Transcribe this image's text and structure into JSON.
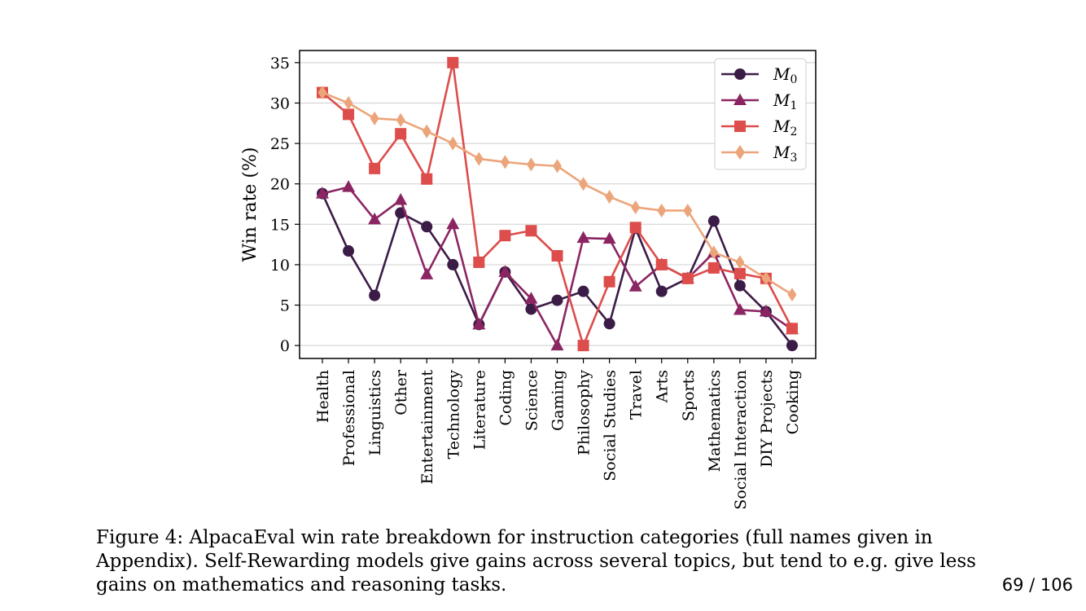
{
  "chart_data": {
    "type": "line",
    "ylabel": "Win rate (%)",
    "xlabel": "",
    "ylim": [
      -1.6,
      36.5
    ],
    "yticks": [
      0,
      5,
      10,
      15,
      20,
      25,
      30,
      35
    ],
    "grid": "horizontal",
    "legend_position": "top-right",
    "categories": [
      "Health",
      "Professional",
      "Linguistics",
      "Other",
      "Entertainment",
      "Technology",
      "Literature",
      "Coding",
      "Science",
      "Gaming",
      "Philosophy",
      "Social Studies",
      "Travel",
      "Arts",
      "Sports",
      "Mathematics",
      "Social Interaction",
      "DIY Projects",
      "Cooking"
    ],
    "series": [
      {
        "name": "M",
        "sub": "0",
        "marker": "circle",
        "color": "#3b1c47",
        "values": [
          18.8,
          11.7,
          6.2,
          16.4,
          14.7,
          10.0,
          2.6,
          9.1,
          4.5,
          5.6,
          6.7,
          2.7,
          14.5,
          6.7,
          8.3,
          15.4,
          7.4,
          4.2,
          0.0
        ]
      },
      {
        "name": "M",
        "sub": "1",
        "marker": "triangle",
        "color": "#8b2562",
        "values": [
          18.8,
          19.6,
          15.6,
          18.0,
          8.8,
          15.0,
          2.6,
          9.1,
          5.8,
          0.0,
          13.3,
          13.2,
          7.3,
          10.0,
          8.3,
          11.5,
          4.4,
          4.2,
          2.0
        ]
      },
      {
        "name": "M",
        "sub": "2",
        "marker": "square",
        "color": "#dc4d4b",
        "values": [
          31.3,
          28.6,
          21.9,
          26.2,
          20.6,
          35.0,
          10.3,
          13.6,
          14.2,
          11.1,
          0.0,
          7.9,
          14.6,
          10.0,
          8.3,
          9.6,
          8.9,
          8.3,
          2.1
        ]
      },
      {
        "name": "M",
        "sub": "3",
        "marker": "diamond",
        "color": "#eca57b",
        "values": [
          31.3,
          30.0,
          28.1,
          27.9,
          26.5,
          25.0,
          23.1,
          22.7,
          22.4,
          22.2,
          20.0,
          18.4,
          17.1,
          16.7,
          16.7,
          11.5,
          10.3,
          8.3,
          6.3
        ]
      }
    ]
  },
  "caption": {
    "lines": [
      "Figure 4:  AlpacaEval win rate breakdown for instruction categories (full names given in",
      "Appendix). Self-Rewarding models give gains across several topics, but tend to e.g. give less",
      "gains on mathematics and reasoning tasks."
    ]
  },
  "page_number": "69 / 106"
}
